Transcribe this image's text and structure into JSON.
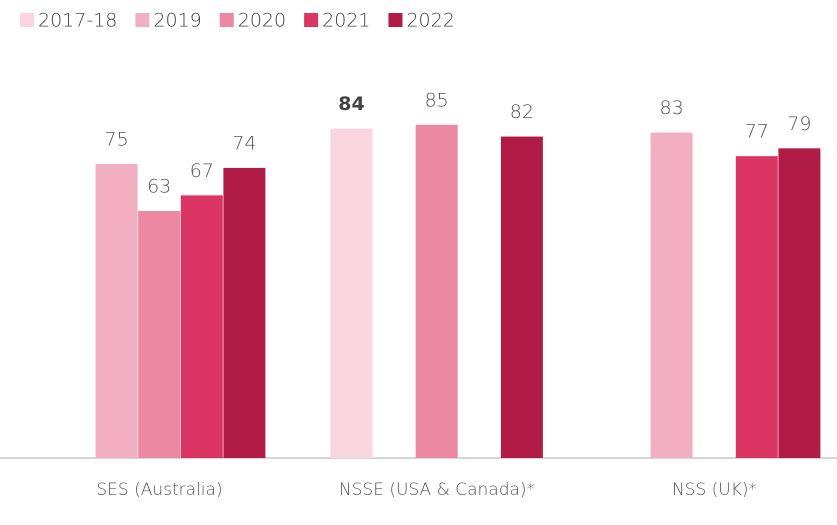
{
  "chart_data": {
    "type": "bar",
    "categories": [
      "SES (Australia)",
      "NSSE (USA & Canada)*",
      "NSS (UK)*"
    ],
    "series": [
      {
        "name": "2017-18",
        "color": "#f8d5df",
        "values": [
          null,
          84,
          null
        ]
      },
      {
        "name": "2019",
        "color": "#f2afc2",
        "values": [
          75,
          null,
          83
        ]
      },
      {
        "name": "2020",
        "color": "#ec88a2",
        "values": [
          63,
          85,
          null
        ]
      },
      {
        "name": "2021",
        "color": "#dc3563",
        "values": [
          67,
          null,
          77
        ]
      },
      {
        "name": "2022",
        "color": "#b01c45",
        "values": [
          74,
          82,
          79
        ]
      }
    ],
    "ylim": [
      0,
      100
    ],
    "legend": "top-left"
  }
}
